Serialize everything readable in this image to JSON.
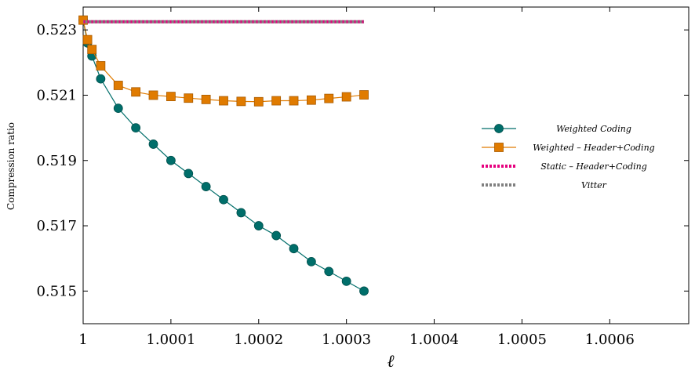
{
  "chart_data": {
    "type": "line",
    "xlabel": "ℓ",
    "ylabel": "Compression ratio",
    "xlim": [
      1,
      1.00069
    ],
    "ylim": [
      0.514,
      0.5237
    ],
    "x_ticks": [
      1,
      1.0001,
      1.0002,
      1.0003,
      1.0004,
      1.0005,
      1.0006
    ],
    "x_tick_labels": [
      "1",
      "1.0001",
      "1.0002",
      "1.0003",
      "1.0004",
      "1.0005",
      "1.0006"
    ],
    "y_ticks": [
      0.515,
      0.517,
      0.519,
      0.521,
      0.523
    ],
    "y_tick_labels": [
      "0.515",
      "0.517",
      "0.519",
      "0.521",
      "0.523"
    ],
    "grid": false,
    "legend_position": "right",
    "series": [
      {
        "name": "Weighted Coding",
        "color": "#006e6a",
        "marker": "circle",
        "style": "solid",
        "x": [
          1,
          1.000005,
          1.00001,
          1.00002,
          1.00004,
          1.00006,
          1.00008,
          1.0001,
          1.00012,
          1.00014,
          1.00016,
          1.00018,
          1.0002,
          1.00022,
          1.00024,
          1.00026,
          1.00028,
          1.0003,
          1.00032
        ],
        "y": [
          0.5233,
          0.5226,
          0.5222,
          0.5215,
          0.5206,
          0.52,
          0.5195,
          0.519,
          0.5186,
          0.5182,
          0.5178,
          0.5174,
          0.517,
          0.5167,
          0.5163,
          0.5159,
          0.5156,
          0.5153,
          0.515
        ]
      },
      {
        "name": "Weighted – Header+Coding",
        "color": "#e07b00",
        "marker": "square",
        "style": "solid",
        "x": [
          1,
          1.000005,
          1.00001,
          1.00002,
          1.00004,
          1.00006,
          1.00008,
          1.0001,
          1.00012,
          1.00014,
          1.00016,
          1.00018,
          1.0002,
          1.00022,
          1.00024,
          1.00026,
          1.00028,
          1.0003,
          1.00032
        ],
        "y": [
          0.5233,
          0.5227,
          0.5224,
          0.5219,
          0.5213,
          0.5211,
          0.521,
          0.52096,
          0.52091,
          0.52087,
          0.52083,
          0.52081,
          0.5208,
          0.52083,
          0.52083,
          0.52085,
          0.5209,
          0.52095,
          0.52101
        ]
      },
      {
        "name": "Static – Header+Coding",
        "color": "#e6007e",
        "marker": "none",
        "style": "dotted",
        "x": [
          1,
          1.00032
        ],
        "y": [
          0.52325,
          0.52325
        ]
      },
      {
        "name": "Vitter",
        "color": "#808080",
        "marker": "none",
        "style": "dotted",
        "x": [
          1,
          1.00032
        ],
        "y": [
          0.52325,
          0.52325
        ]
      }
    ]
  }
}
